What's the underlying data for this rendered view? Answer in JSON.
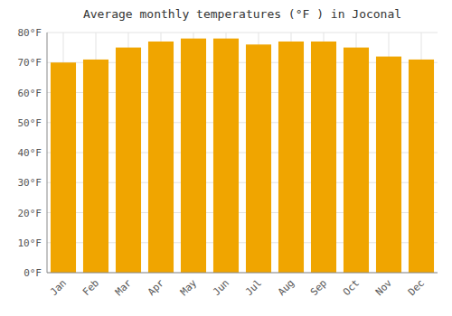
{
  "chart_data": {
    "type": "bar",
    "title": "Average monthly temperatures (°F ) in Joconal",
    "categories": [
      "Jan",
      "Feb",
      "Mar",
      "Apr",
      "May",
      "Jun",
      "Jul",
      "Aug",
      "Sep",
      "Oct",
      "Nov",
      "Dec"
    ],
    "values": [
      70,
      71,
      75,
      77,
      78,
      78,
      76,
      77,
      77,
      75,
      72,
      71
    ],
    "color": "#F0A500",
    "ylim": [
      0,
      80
    ],
    "yticks": [
      {
        "value": 0,
        "label": "0°F"
      },
      {
        "value": 10,
        "label": "10°F"
      },
      {
        "value": 20,
        "label": "20°F"
      },
      {
        "value": 30,
        "label": "30°F"
      },
      {
        "value": 40,
        "label": "40°F"
      },
      {
        "value": 50,
        "label": "50°F"
      },
      {
        "value": 60,
        "label": "60°F"
      },
      {
        "value": 70,
        "label": "70°F"
      },
      {
        "value": 80,
        "label": "80°F"
      }
    ],
    "grid": true
  }
}
